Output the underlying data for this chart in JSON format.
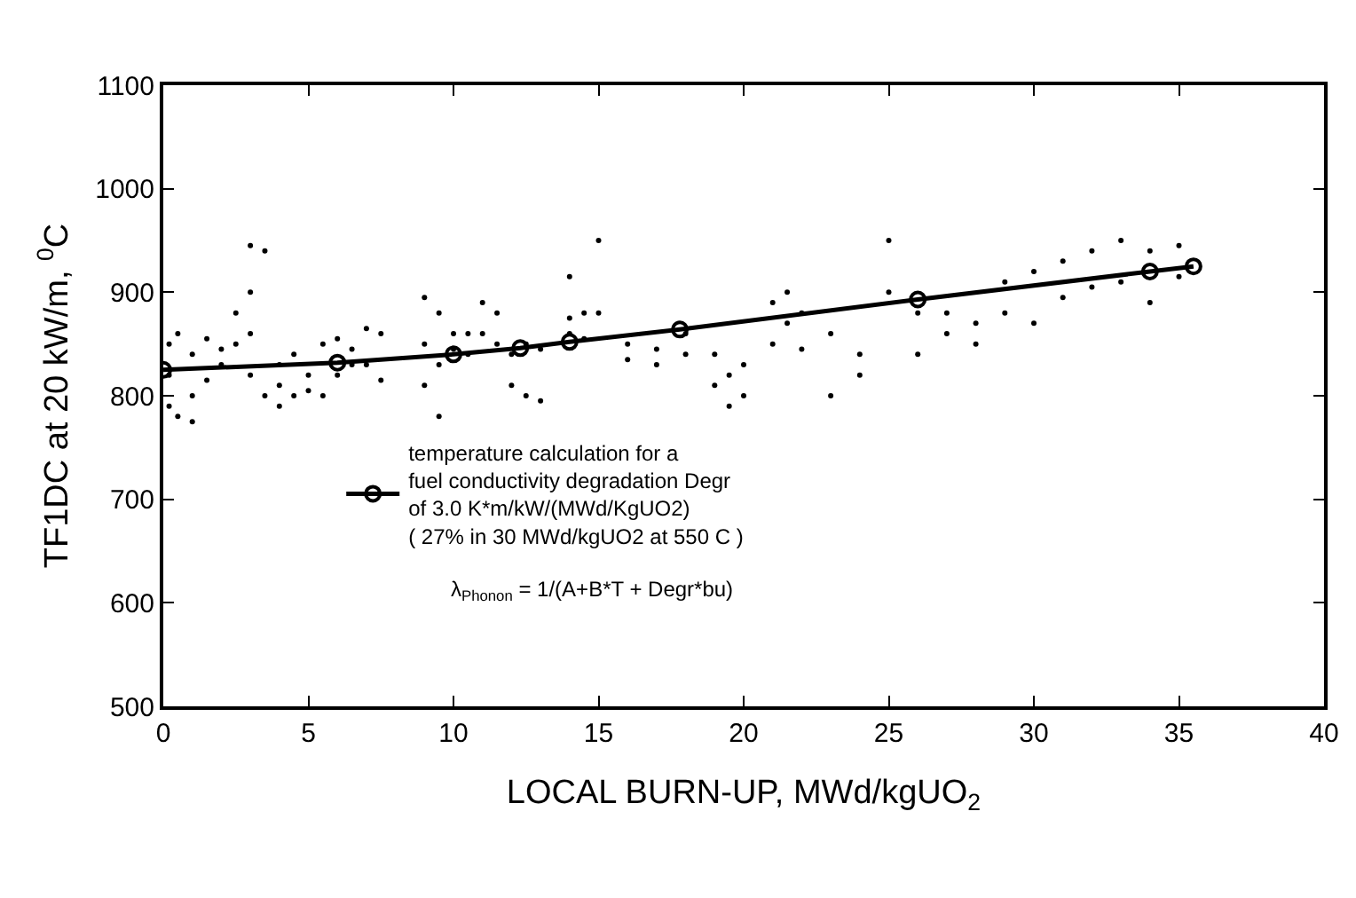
{
  "chart_data": {
    "type": "scatter",
    "xlabel": "LOCAL BURN-UP, MWd/kgUO$_{2}$",
    "ylabel": "TF1DC at 20 kW/m, $^{0}$C",
    "xlim": [
      0,
      40
    ],
    "xticks": [
      0,
      5,
      10,
      15,
      20,
      25,
      30,
      35,
      40
    ],
    "ylim": [
      500,
      1100
    ],
    "yticks": [
      500,
      600,
      700,
      800,
      900,
      1000,
      1100
    ],
    "grid": false,
    "legend": "left",
    "series": [
      {
        "marker": "circle",
        "color": "#000000",
        "x": [
          0.2,
          0.2,
          0.2,
          0.5,
          0.5,
          1,
          1,
          1,
          1.5,
          1.5,
          2,
          2,
          2.5,
          2.5,
          3,
          3,
          3,
          3,
          3.5,
          3.5,
          4,
          4,
          4,
          4.5,
          4.5,
          5,
          5,
          5.5,
          5.5,
          6,
          6,
          6.5,
          6.5,
          7,
          7,
          7.5,
          7.5,
          9,
          9,
          9,
          9.5,
          9.5,
          9.5,
          10,
          10,
          10.5,
          10.5,
          11,
          11,
          11.5,
          11.5,
          12,
          12,
          12.5,
          12.5,
          13,
          13,
          14,
          14,
          14,
          14.5,
          14.5,
          15,
          15,
          16,
          16,
          17,
          17,
          18,
          18,
          19,
          19,
          19.5,
          19.5,
          20,
          20,
          21,
          21,
          21.5,
          21.5,
          22,
          22,
          23,
          23,
          24,
          24,
          25,
          25,
          26,
          26,
          27,
          27,
          28,
          28,
          29,
          29,
          30,
          30,
          31,
          31,
          32,
          32,
          33,
          33,
          34,
          34,
          35,
          35
        ],
        "values": [
          850,
          790,
          820,
          860,
          780,
          840,
          800,
          775,
          855,
          815,
          845,
          830,
          880,
          850,
          945,
          900,
          860,
          820,
          940,
          800,
          830,
          810,
          790,
          840,
          800,
          820,
          805,
          850,
          800,
          855,
          820,
          845,
          830,
          865,
          830,
          860,
          815,
          895,
          850,
          810,
          880,
          830,
          780,
          860,
          845,
          860,
          840,
          890,
          860,
          880,
          850,
          840,
          810,
          850,
          800,
          845,
          795,
          915,
          875,
          860,
          880,
          855,
          950,
          880,
          850,
          835,
          845,
          830,
          860,
          840,
          840,
          810,
          820,
          790,
          830,
          800,
          890,
          850,
          900,
          870,
          880,
          845,
          860,
          800,
          840,
          820,
          950,
          900,
          880,
          840,
          880,
          860,
          870,
          850,
          910,
          880,
          920,
          870,
          930,
          895,
          940,
          905,
          950,
          910,
          940,
          890,
          945,
          915
        ]
      },
      {
        "type": "line",
        "marker": "circle",
        "line_style": "solid",
        "color": "#000000",
        "name": "temperature calculation for a\nfuel conductivity degradation Degr\nof 3.0 K*m/kW/(MWd/KgUO2)\n( 27% in 30 MWd/kgUO2 at 550 C )",
        "x": [
          0,
          6,
          10,
          12.3,
          14,
          17.8,
          26,
          34,
          35.5
        ],
        "values": [
          825,
          832,
          840,
          846,
          852,
          864,
          893,
          920,
          925
        ]
      }
    ],
    "annotations": [
      "λ$_{Phonon}$ = 1/(A+B*T + Degr*bu)"
    ]
  }
}
